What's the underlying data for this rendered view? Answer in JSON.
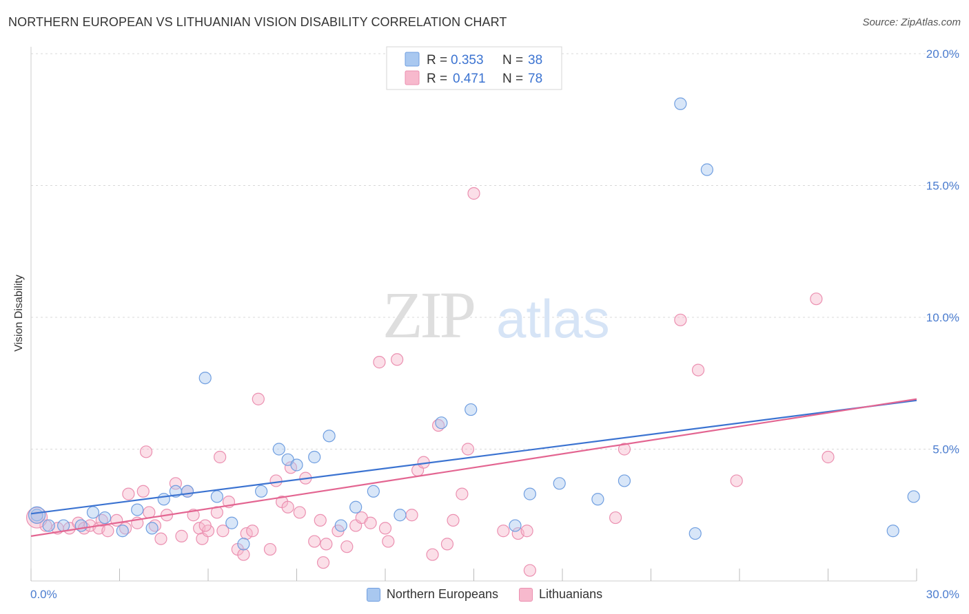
{
  "header": {
    "title": "NORTHERN EUROPEAN VS LITHUANIAN VISION DISABILITY CORRELATION CHART",
    "source": "Source: ZipAtlas.com"
  },
  "watermark": {
    "zip": "ZIP",
    "atlas": "atlas"
  },
  "legend": {
    "items": [
      {
        "r_label": "R =",
        "r_value": "0.353",
        "n_label": "N =",
        "n_value": "38"
      },
      {
        "r_label": "R =",
        "r_value": "0.471",
        "n_label": "N =",
        "n_value": "78"
      }
    ]
  },
  "bottom_legend": {
    "items": [
      "Northern Europeans",
      "Lithuanians"
    ]
  },
  "colors": {
    "blue_fill": "#a9c8f0",
    "blue_stroke": "#6f9ee0",
    "blue_line": "#3b73d1",
    "pink_fill": "#f7b9cd",
    "pink_stroke": "#eb8fb0",
    "pink_line": "#e36591",
    "tick_text": "#4a7ccf",
    "grid": "#d8d8d8"
  },
  "chart_data": {
    "type": "scatter",
    "title": "NORTHERN EUROPEAN VS LITHUANIAN VISION DISABILITY CORRELATION CHART",
    "xlabel": "",
    "ylabel": "Vision Disability",
    "xlim": [
      0,
      30
    ],
    "ylim": [
      0,
      20
    ],
    "x_tick_labels": [
      {
        "value": 0,
        "label": "0.0%"
      },
      {
        "value": 30,
        "label": "30.0%"
      }
    ],
    "y_tick_labels": [
      {
        "value": 5,
        "label": "5.0%"
      },
      {
        "value": 10,
        "label": "10.0%"
      },
      {
        "value": 15,
        "label": "15.0%"
      },
      {
        "value": 20,
        "label": "20.0%"
      }
    ],
    "grid": true,
    "legend_position": "top-center",
    "series": [
      {
        "name": "Northern Europeans",
        "r": 0.353,
        "n": 38,
        "trend": [
          [
            0,
            2.55
          ],
          [
            30,
            6.85
          ]
        ],
        "points": [
          [
            0.2,
            2.5
          ],
          [
            0.6,
            2.1
          ],
          [
            1.1,
            2.1
          ],
          [
            1.7,
            2.1
          ],
          [
            2.1,
            2.6
          ],
          [
            2.5,
            2.4
          ],
          [
            3.1,
            1.9
          ],
          [
            3.6,
            2.7
          ],
          [
            4.1,
            2.0
          ],
          [
            4.5,
            3.1
          ],
          [
            4.9,
            3.4
          ],
          [
            5.3,
            3.4
          ],
          [
            5.9,
            7.7
          ],
          [
            6.3,
            3.2
          ],
          [
            6.8,
            2.2
          ],
          [
            7.2,
            1.4
          ],
          [
            7.8,
            3.4
          ],
          [
            8.4,
            5.0
          ],
          [
            8.7,
            4.6
          ],
          [
            9.0,
            4.4
          ],
          [
            9.6,
            4.7
          ],
          [
            10.5,
            2.1
          ],
          [
            10.1,
            5.5
          ],
          [
            11.0,
            2.8
          ],
          [
            11.6,
            3.4
          ],
          [
            12.5,
            2.5
          ],
          [
            13.9,
            6.0
          ],
          [
            14.9,
            6.5
          ],
          [
            16.4,
            2.1
          ],
          [
            16.9,
            3.3
          ],
          [
            17.9,
            3.7
          ],
          [
            19.2,
            3.1
          ],
          [
            20.1,
            3.8
          ],
          [
            22.0,
            18.1
          ],
          [
            22.5,
            1.8
          ],
          [
            22.9,
            15.6
          ],
          [
            29.2,
            1.9
          ],
          [
            29.9,
            3.2
          ]
        ]
      },
      {
        "name": "Lithuanians",
        "r": 0.471,
        "n": 78,
        "trend": [
          [
            0,
            1.7
          ],
          [
            30,
            6.9
          ]
        ],
        "points": [
          [
            0.2,
            2.4
          ],
          [
            0.5,
            2.1
          ],
          [
            0.9,
            2.0
          ],
          [
            1.3,
            2.0
          ],
          [
            1.6,
            2.2
          ],
          [
            1.8,
            2.0
          ],
          [
            2.0,
            2.1
          ],
          [
            2.3,
            2.0
          ],
          [
            2.6,
            1.9
          ],
          [
            2.9,
            2.3
          ],
          [
            3.2,
            2.0
          ],
          [
            3.3,
            3.3
          ],
          [
            3.6,
            2.2
          ],
          [
            3.8,
            3.4
          ],
          [
            3.9,
            4.9
          ],
          [
            4.2,
            2.1
          ],
          [
            4.4,
            1.6
          ],
          [
            4.6,
            2.5
          ],
          [
            4.9,
            3.7
          ],
          [
            5.1,
            1.7
          ],
          [
            5.3,
            3.4
          ],
          [
            5.5,
            2.5
          ],
          [
            5.7,
            2.0
          ],
          [
            5.8,
            1.6
          ],
          [
            6.0,
            1.9
          ],
          [
            6.3,
            2.6
          ],
          [
            6.4,
            4.7
          ],
          [
            6.7,
            3.0
          ],
          [
            7.0,
            1.2
          ],
          [
            7.2,
            1.0
          ],
          [
            7.3,
            1.8
          ],
          [
            7.5,
            1.9
          ],
          [
            7.7,
            6.9
          ],
          [
            8.1,
            1.2
          ],
          [
            8.3,
            3.8
          ],
          [
            8.5,
            3.0
          ],
          [
            8.7,
            2.8
          ],
          [
            8.8,
            4.3
          ],
          [
            9.1,
            2.6
          ],
          [
            9.3,
            3.9
          ],
          [
            9.6,
            1.5
          ],
          [
            9.9,
            0.7
          ],
          [
            10.0,
            1.4
          ],
          [
            10.4,
            1.9
          ],
          [
            10.7,
            1.3
          ],
          [
            11.0,
            2.1
          ],
          [
            11.2,
            2.4
          ],
          [
            11.5,
            2.2
          ],
          [
            11.8,
            8.3
          ],
          [
            12.0,
            2.0
          ],
          [
            12.4,
            8.4
          ],
          [
            12.9,
            2.5
          ],
          [
            13.1,
            4.2
          ],
          [
            13.3,
            4.5
          ],
          [
            13.6,
            1.0
          ],
          [
            13.8,
            5.9
          ],
          [
            14.1,
            1.4
          ],
          [
            14.6,
            3.3
          ],
          [
            14.8,
            5.0
          ],
          [
            15.0,
            14.7
          ],
          [
            16.0,
            1.9
          ],
          [
            16.5,
            1.8
          ],
          [
            16.8,
            1.9
          ],
          [
            16.9,
            0.4
          ],
          [
            19.8,
            2.4
          ],
          [
            20.1,
            5.0
          ],
          [
            22.0,
            9.9
          ],
          [
            22.6,
            8.0
          ],
          [
            23.9,
            3.8
          ],
          [
            26.6,
            10.7
          ],
          [
            27.0,
            4.7
          ],
          [
            2.4,
            2.3
          ],
          [
            4.0,
            2.6
          ],
          [
            5.9,
            2.1
          ],
          [
            6.5,
            1.9
          ],
          [
            9.8,
            2.3
          ],
          [
            12.1,
            1.5
          ],
          [
            14.3,
            2.3
          ]
        ]
      }
    ]
  }
}
